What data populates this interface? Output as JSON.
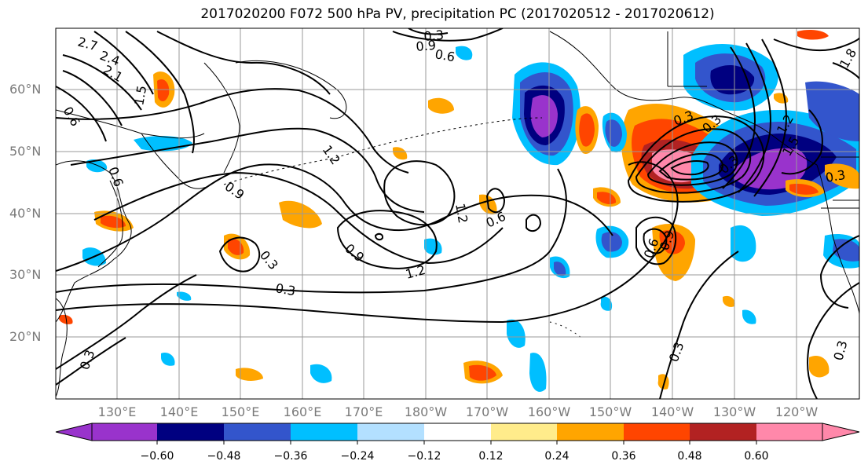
{
  "title": "2017020200 F072 500 hPa PV, precipitation PC (2017020512 - 2017020612)",
  "lat_labels": [
    "60°N",
    "50°N",
    "40°N",
    "30°N",
    "20°N"
  ],
  "lon_labels": [
    "130°E",
    "140°E",
    "150°E",
    "160°E",
    "170°E",
    "180°W",
    "170°W",
    "160°W",
    "150°W",
    "140°W",
    "130°W",
    "120°W"
  ],
  "colorbar": {
    "colors": [
      "#9933cc",
      "#000080",
      "#3355cc",
      "#00bfff",
      "#b3e0ff",
      "#ffffff",
      "#ffec8b",
      "#ffa500",
      "#ff4500",
      "#b22222",
      "#ff88aa"
    ],
    "labels": [
      "−0.60",
      "−0.48",
      "−0.36",
      "−0.24",
      "−0.12",
      "0.12",
      "0.24",
      "0.36",
      "0.48",
      "0.60"
    ]
  },
  "contour_labels": [
    "2.7",
    "2.4",
    "2.1",
    "1.5",
    "0.6",
    "1.2",
    "0.9",
    "0.3",
    "0.9",
    "0.6",
    "0.6",
    "0.3",
    "1.2",
    "0.9",
    "0.6",
    "0.3",
    "1.2",
    "0.3",
    "0.3",
    "0.3",
    "0.6",
    "0.9",
    "0.3",
    "1.2",
    "1.5",
    "0.3",
    "1.8",
    "0.3",
    "0.3"
  ]
}
